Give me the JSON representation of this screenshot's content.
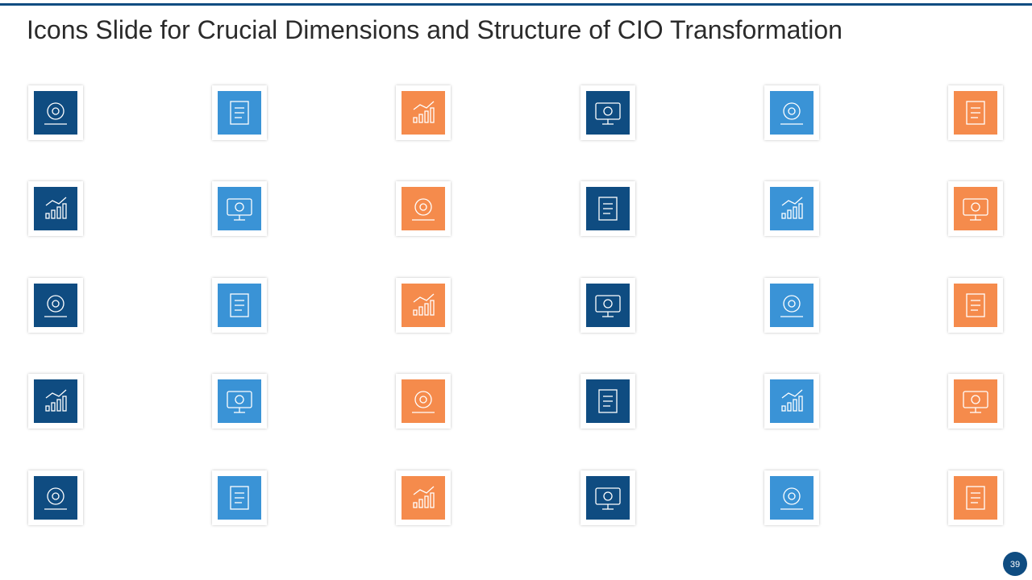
{
  "header": {
    "title": "Icons Slide for Crucial Dimensions and Structure of CIO Transformation"
  },
  "footer": {
    "page_number": "39"
  }
}
